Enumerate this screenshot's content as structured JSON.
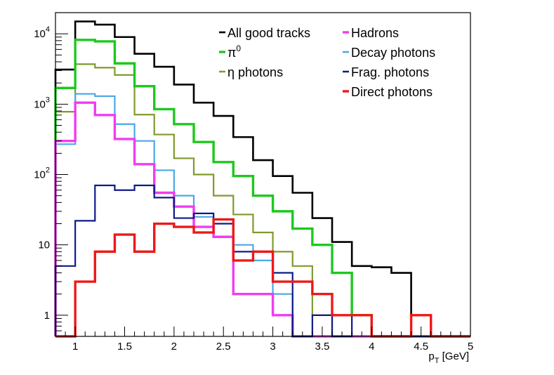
{
  "chart_data": {
    "type": "histogram",
    "title": "",
    "xlabel": "p",
    "xlabel_subscript": "T",
    "xlabel_unit": " [GeV]",
    "x_scale": "linear",
    "y_scale": "log",
    "xlim": [
      0.8,
      5.0
    ],
    "ylim": [
      0.5,
      20000
    ],
    "bin_edges": [
      0.8,
      1.0,
      1.2,
      1.4,
      1.6,
      1.8,
      2.0,
      2.2,
      2.4,
      2.6,
      2.8,
      3.0,
      3.2,
      3.4,
      3.6,
      3.8,
      4.0,
      4.2,
      4.4,
      4.6,
      4.8,
      5.0
    ],
    "x_ticks": [
      {
        "value": 1,
        "label": "1"
      },
      {
        "value": 1.5,
        "label": "1.5"
      },
      {
        "value": 2,
        "label": "2"
      },
      {
        "value": 2.5,
        "label": "2.5"
      },
      {
        "value": 3,
        "label": "3"
      },
      {
        "value": 3.5,
        "label": "3.5"
      },
      {
        "value": 4,
        "label": "4"
      },
      {
        "value": 4.5,
        "label": "4.5"
      },
      {
        "value": 5,
        "label": "5"
      }
    ],
    "y_ticks": [
      {
        "value": 1,
        "base": "1",
        "exp": ""
      },
      {
        "value": 10,
        "base": "10",
        "exp": ""
      },
      {
        "value": 100,
        "base": "10",
        "exp": "2"
      },
      {
        "value": 1000,
        "base": "10",
        "exp": "3"
      },
      {
        "value": 10000,
        "base": "10",
        "exp": "4"
      }
    ],
    "series": [
      {
        "id": "all",
        "name": "All good tracks",
        "sup": "",
        "color": "#000000",
        "width": 2.6,
        "values": [
          3100,
          15000,
          13500,
          9000,
          5200,
          3400,
          1900,
          1050,
          680,
          340,
          160,
          95,
          55,
          24,
          11,
          5,
          4.8,
          4,
          0,
          0,
          0
        ]
      },
      {
        "id": "eta",
        "name": "η photons",
        "sup": "",
        "color": "#7f9a2b",
        "width": 2.2,
        "values": [
          780,
          3700,
          3300,
          2600,
          710,
          370,
          170,
          100,
          50,
          27,
          15,
          8,
          5,
          1,
          0,
          0,
          0,
          0,
          0,
          0,
          0
        ]
      },
      {
        "id": "pi0",
        "name": "π",
        "sup": "0",
        "color": "#1ec81e",
        "width": 3.4,
        "values": [
          1700,
          8200,
          7800,
          3800,
          1800,
          850,
          520,
          290,
          150,
          95,
          50,
          30,
          17,
          10,
          4,
          1,
          0,
          0,
          0,
          0,
          0
        ]
      },
      {
        "id": "decay",
        "name": "Decay photons",
        "sup": "",
        "color": "#4aa8e6",
        "width": 2.2,
        "values": [
          270,
          1400,
          1300,
          520,
          300,
          115,
          50,
          25,
          13,
          10,
          6,
          2,
          0,
          0,
          0,
          0,
          0,
          0,
          0,
          0,
          0
        ]
      },
      {
        "id": "hadrons",
        "name": "Hadrons",
        "sup": "",
        "color": "#f03cf0",
        "width": 3.4,
        "values": [
          300,
          1050,
          700,
          320,
          140,
          55,
          35,
          18,
          13,
          2,
          2,
          1,
          0,
          0,
          0,
          0,
          0,
          0,
          0,
          0,
          0
        ]
      },
      {
        "id": "frag",
        "name": "Frag. photons",
        "sup": "",
        "color": "#0f1a8a",
        "width": 2.2,
        "values": [
          5,
          22,
          70,
          60,
          70,
          47,
          24,
          28,
          20,
          8,
          8,
          4,
          0,
          1,
          0,
          1,
          0,
          0,
          0,
          0,
          0
        ]
      },
      {
        "id": "direct",
        "name": "Direct photons",
        "sup": "",
        "color": "#ee1818",
        "width": 3.4,
        "values": [
          0,
          3,
          8,
          14,
          8,
          20,
          18,
          15,
          23,
          6,
          8,
          3,
          3,
          2,
          1,
          1,
          0.5,
          0,
          1,
          0,
          0
        ]
      }
    ],
    "legend": {
      "placement": "top",
      "entries": [
        {
          "series": "all",
          "name": "All good tracks",
          "sup": ""
        },
        {
          "series": "pi0",
          "name": "π",
          "sup": "0"
        },
        {
          "series": "eta",
          "name": "η photons",
          "sup": ""
        },
        {
          "series": "hadrons",
          "name": "Hadrons",
          "sup": ""
        },
        {
          "series": "decay",
          "name": "Decay photons",
          "sup": ""
        },
        {
          "series": "frag",
          "name": "Frag. photons",
          "sup": ""
        },
        {
          "series": "direct",
          "name": "Direct photons",
          "sup": ""
        }
      ]
    }
  }
}
